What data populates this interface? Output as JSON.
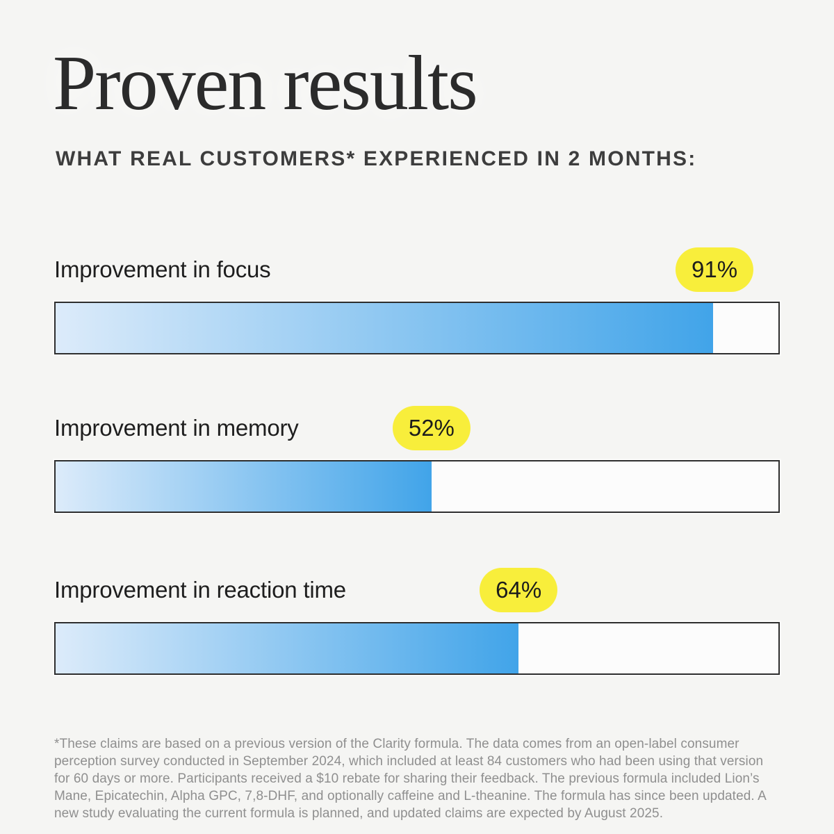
{
  "page": {
    "title": "Proven results",
    "subtitle": "WHAT REAL CUSTOMERS* EXPERIENCED IN 2 MONTHS:",
    "footnote": "*These claims are based on a previous version of the Clarity formula. The data comes from an open-label consumer perception survey conducted in September 2024, which included at least 84 customers who had been using that version for 60 days or more. Participants received a $10 rebate for sharing their feedback. The previous formula included Lion’s Mane, Epicatechin, Alpha GPC, 7,8-DHF, and optionally caffeine and L-theanine. The formula has since been updated. A new study evaluating the current formula is planned, and updated claims are expected by August 2025."
  },
  "chart_data": {
    "type": "bar",
    "orientation": "horizontal",
    "title": "Proven results",
    "subtitle": "WHAT REAL CUSTOMERS* EXPERIENCED IN 2 MONTHS:",
    "categories": [
      "Improvement in focus",
      "Improvement in memory",
      "Improvement in reaction time"
    ],
    "values": [
      91,
      52,
      64
    ],
    "value_labels": [
      "91%",
      "52%",
      "64%"
    ],
    "xlim": [
      0,
      100
    ],
    "grid": false,
    "legend": false,
    "value_label_position": "badge-at-fill-end"
  },
  "colors": {
    "background": "#f5f5f3",
    "badge_yellow": "#f8ee3b",
    "fill_gradient_start": "#dcebfa",
    "fill_gradient_end": "#41a4e9",
    "track_background": "#fcfcfc",
    "track_border": "#2e2e2e",
    "title_text": "#2b2b2b",
    "label_text": "#1e1e1e",
    "footnote_text": "#8f8f8f"
  }
}
